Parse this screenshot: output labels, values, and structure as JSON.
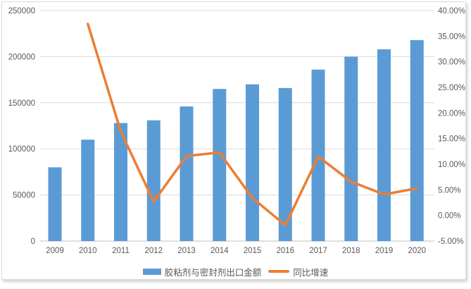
{
  "chart_data": {
    "type": "bar",
    "subtype": "combo-bar-line-dual-axis",
    "title": "",
    "categories": [
      "2009",
      "2010",
      "2011",
      "2012",
      "2013",
      "2014",
      "2015",
      "2016",
      "2017",
      "2018",
      "2019",
      "2020"
    ],
    "series": [
      {
        "name": "胶粘剂与密封剂出口金额",
        "type": "bar",
        "axis": "left",
        "color": "#5B9BD5",
        "values": [
          80000,
          110000,
          128000,
          131000,
          146000,
          165000,
          170000,
          166000,
          186000,
          200000,
          208000,
          218000
        ]
      },
      {
        "name": "同比增速",
        "type": "line",
        "axis": "right",
        "color": "#ED7D31",
        "values": [
          null,
          37.4,
          16.4,
          2.7,
          11.6,
          12.3,
          3.4,
          -1.9,
          11.5,
          6.6,
          4.1,
          5.3
        ]
      }
    ],
    "left_axis": {
      "min": 0,
      "max": 250000,
      "step": 50000,
      "tick_labels": [
        "0",
        "50000",
        "100000",
        "150000",
        "200000",
        "250000"
      ]
    },
    "right_axis": {
      "min": -5,
      "max": 40,
      "step": 5,
      "tick_labels": [
        "-5.00%",
        "0.00%",
        "5.00%",
        "10.00%",
        "15.00%",
        "20.00%",
        "25.00%",
        "30.00%",
        "35.00%",
        "40.00%"
      ]
    },
    "grid": true,
    "legend_position": "bottom"
  },
  "colors": {
    "bar": "#5B9BD5",
    "line": "#ED7D31",
    "gridline": "#D9D9D9",
    "axis_line": "#BFBFBF",
    "text": "#595959",
    "frame_border": "#D9D9D9"
  },
  "legend": {
    "bar_label": "胶粘剂与密封剂出口金额",
    "line_label": "同比增速"
  }
}
